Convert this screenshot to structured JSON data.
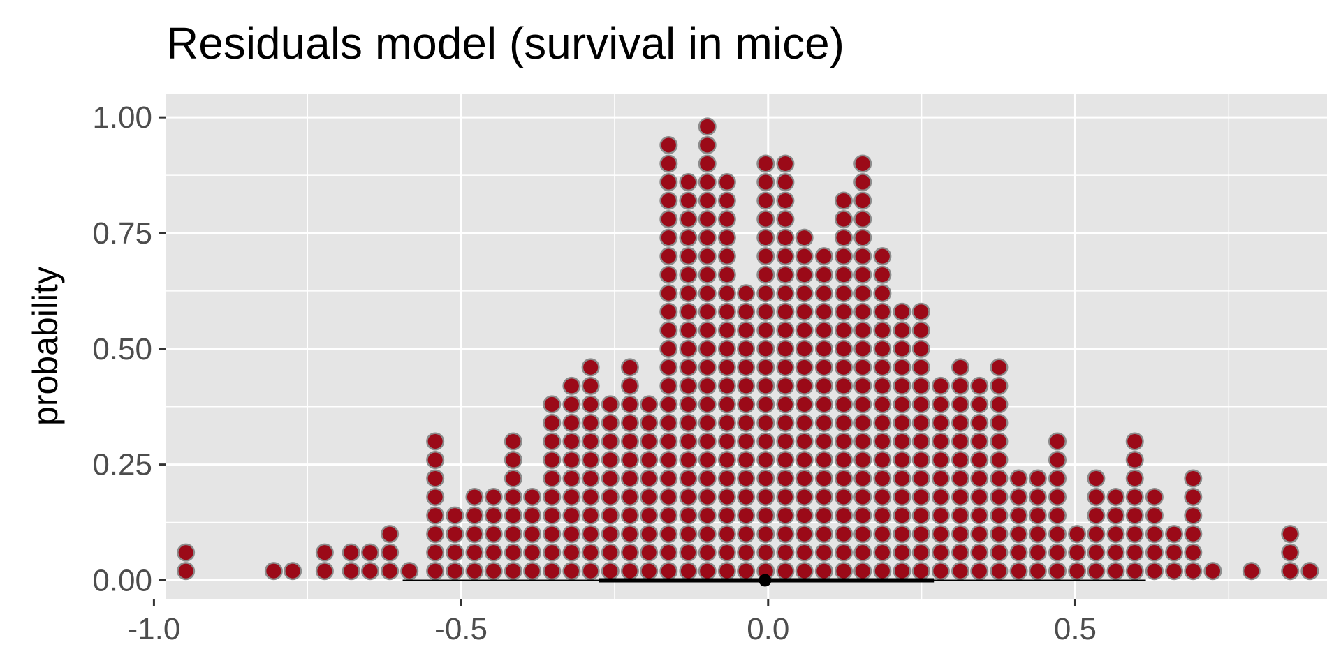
{
  "colors": {
    "panel_background": "#e5e5e5",
    "gridline": "#ffffff",
    "dot_fill": "#9b0a18",
    "dot_outline": "#8c8c8c",
    "interval": "#000000",
    "tick_text": "#4d4d4d"
  },
  "chart_data": {
    "type": "scatter",
    "subtype": "quantile dotplot with point interval",
    "title": "Residuals model (survival in mice)",
    "xlabel": "",
    "ylabel": "probability",
    "xlim": [
      -0.98,
      0.91
    ],
    "ylim": [
      -0.04,
      1.05
    ],
    "x_ticks": [
      -1.0,
      -0.5,
      0.0,
      0.5
    ],
    "x_tick_labels": [
      "-1.0",
      "-0.5",
      "0.0",
      "0.5"
    ],
    "y_ticks": [
      0.0,
      0.25,
      0.5,
      0.75,
      1.0
    ],
    "y_tick_labels": [
      "0.00",
      "0.25",
      "0.50",
      "0.75",
      "1.00"
    ],
    "grid": true,
    "dot_row_height": 0.04,
    "dot_columns": [
      {
        "x": -0.948,
        "count": 2
      },
      {
        "x": -0.805,
        "count": 1
      },
      {
        "x": -0.774,
        "count": 1
      },
      {
        "x": -0.722,
        "count": 2
      },
      {
        "x": -0.679,
        "count": 2
      },
      {
        "x": -0.648,
        "count": 2
      },
      {
        "x": -0.616,
        "count": 3
      },
      {
        "x": -0.584,
        "count": 1
      },
      {
        "x": -0.542,
        "count": 8
      },
      {
        "x": -0.51,
        "count": 4
      },
      {
        "x": -0.478,
        "count": 5
      },
      {
        "x": -0.447,
        "count": 5
      },
      {
        "x": -0.415,
        "count": 8
      },
      {
        "x": -0.384,
        "count": 5
      },
      {
        "x": -0.352,
        "count": 10
      },
      {
        "x": -0.32,
        "count": 11
      },
      {
        "x": -0.289,
        "count": 12
      },
      {
        "x": -0.257,
        "count": 10
      },
      {
        "x": -0.225,
        "count": 12
      },
      {
        "x": -0.194,
        "count": 10
      },
      {
        "x": -0.162,
        "count": 24
      },
      {
        "x": -0.13,
        "count": 22
      },
      {
        "x": -0.099,
        "count": 25
      },
      {
        "x": -0.067,
        "count": 22
      },
      {
        "x": -0.036,
        "count": 16
      },
      {
        "x": -0.004,
        "count": 23
      },
      {
        "x": 0.028,
        "count": 23
      },
      {
        "x": 0.059,
        "count": 19
      },
      {
        "x": 0.091,
        "count": 18
      },
      {
        "x": 0.123,
        "count": 21
      },
      {
        "x": 0.154,
        "count": 23
      },
      {
        "x": 0.186,
        "count": 18
      },
      {
        "x": 0.218,
        "count": 15
      },
      {
        "x": 0.249,
        "count": 15
      },
      {
        "x": 0.281,
        "count": 11
      },
      {
        "x": 0.313,
        "count": 12
      },
      {
        "x": 0.344,
        "count": 11
      },
      {
        "x": 0.376,
        "count": 12
      },
      {
        "x": 0.408,
        "count": 6
      },
      {
        "x": 0.439,
        "count": 6
      },
      {
        "x": 0.471,
        "count": 8
      },
      {
        "x": 0.503,
        "count": 3
      },
      {
        "x": 0.534,
        "count": 6
      },
      {
        "x": 0.566,
        "count": 5
      },
      {
        "x": 0.597,
        "count": 8
      },
      {
        "x": 0.629,
        "count": 5
      },
      {
        "x": 0.661,
        "count": 3
      },
      {
        "x": 0.692,
        "count": 6
      },
      {
        "x": 0.724,
        "count": 1
      },
      {
        "x": 0.787,
        "count": 1
      },
      {
        "x": 0.85,
        "count": 3
      },
      {
        "x": 0.882,
        "count": 1
      }
    ],
    "interval": {
      "point": -0.005,
      "inner": [
        -0.275,
        0.27
      ],
      "outer": [
        -0.595,
        0.615
      ]
    }
  }
}
